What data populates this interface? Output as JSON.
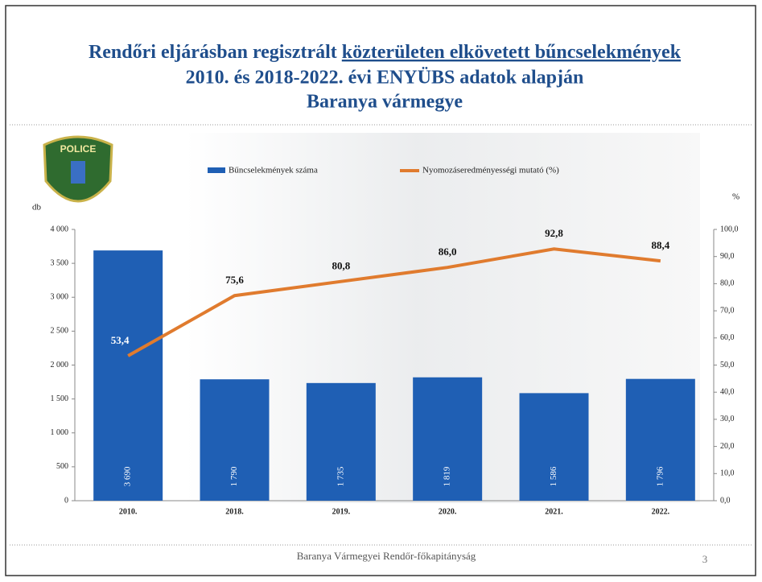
{
  "chart_data": {
    "type": "bar-line",
    "title": [
      "Rendőri eljárásban regisztrált ",
      "közterületen elkövetett bűncselekmények",
      "2010. és 2018-2022. évi ENYÜBS adatok alapján",
      "Baranya vármegye"
    ],
    "logo_text": "POLICE",
    "y_label": "db",
    "y2_label": "%",
    "categories": [
      "2010.",
      "2018.",
      "2019.",
      "2020.",
      "2021.",
      "2022."
    ],
    "series": [
      {
        "name": "Bűncselekmények száma",
        "type": "bar",
        "color": "#1f5fb4",
        "values": [
          3690,
          1790,
          1735,
          1819,
          1586,
          1796
        ],
        "value_labels": [
          "3 690",
          "1 790",
          "1 735",
          "1 819",
          "1 586",
          "1 796"
        ]
      },
      {
        "name": "Nyomozáseredményességi mutató (%)",
        "type": "line",
        "axis": "y2",
        "color": "#e07b2e",
        "values": [
          53.4,
          75.6,
          80.8,
          86.0,
          92.8,
          88.4
        ],
        "value_labels": [
          "53,4",
          "75,6",
          "80,8",
          "86,0",
          "92,8",
          "88,4"
        ]
      }
    ],
    "ylim": [
      0,
      4000
    ],
    "yticks": [
      0,
      500,
      {
        "value": 1000,
        "label": "1 000"
      },
      {
        "value": 1500,
        "label": "1 500"
      },
      {
        "value": 2000,
        "label": "2 000"
      },
      {
        "value": 2500,
        "label": "2 500"
      },
      {
        "value": 3000,
        "label": "3 000"
      },
      {
        "value": 3500,
        "label": "3 500"
      },
      {
        "value": 4000,
        "label": "4 000"
      }
    ],
    "y2lim": [
      0,
      100
    ],
    "y2ticks": [
      {
        "value": 0,
        "label": "0,0"
      },
      {
        "value": 10,
        "label": "10,0"
      },
      {
        "value": 20,
        "label": "20,0"
      },
      {
        "value": 30,
        "label": "30,0"
      },
      {
        "value": 40,
        "label": "40,0"
      },
      {
        "value": 50,
        "label": "50,0"
      },
      {
        "value": 60,
        "label": "60,0"
      },
      {
        "value": 70,
        "label": "70,0"
      },
      {
        "value": 80,
        "label": "80,0"
      },
      {
        "value": 90,
        "label": "90,0"
      },
      {
        "value": 100,
        "label": "100,0"
      }
    ],
    "footer": "Baranya Vármegyei Rendőr-főkapitányság",
    "page_number": "3"
  }
}
